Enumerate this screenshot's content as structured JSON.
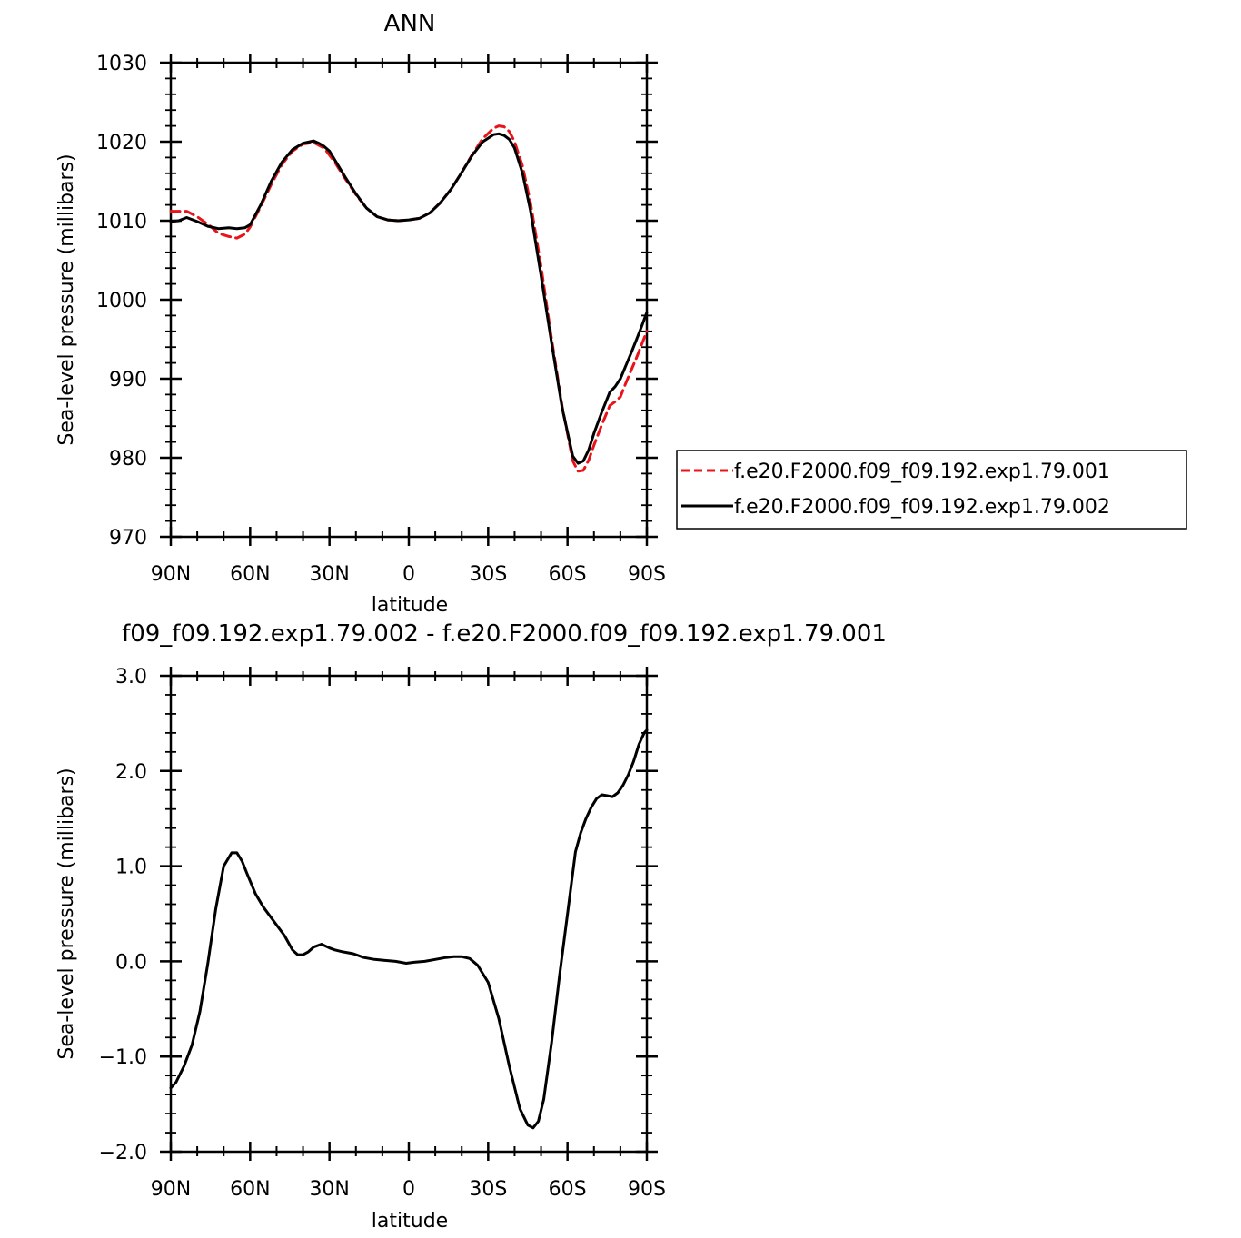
{
  "chart_data": [
    {
      "type": "line",
      "title": "ANN",
      "xlabel": "latitude",
      "ylabel": "Sea-level pressure (millibars)",
      "xlim": [
        90,
        -90
      ],
      "ylim": [
        970,
        1030
      ],
      "x_ticks": [
        {
          "value": 90,
          "label": "90N"
        },
        {
          "value": 60,
          "label": "60N"
        },
        {
          "value": 30,
          "label": "30N"
        },
        {
          "value": 0,
          "label": "0"
        },
        {
          "value": -30,
          "label": "30S"
        },
        {
          "value": -60,
          "label": "60S"
        },
        {
          "value": -90,
          "label": "90S"
        }
      ],
      "y_ticks": [
        {
          "value": 1030,
          "label": "1030"
        },
        {
          "value": 1020,
          "label": "1020"
        },
        {
          "value": 1010,
          "label": "1010"
        },
        {
          "value": 1000,
          "label": "1000"
        },
        {
          "value": 990,
          "label": "990"
        },
        {
          "value": 980,
          "label": "980"
        },
        {
          "value": 970,
          "label": "970"
        }
      ],
      "legend_position": "right",
      "series": [
        {
          "name": "f.e20.F2000.f09_f09.192.exp1.79.001",
          "color": "#e8141a",
          "dash": "dashed",
          "x": [
            90,
            84,
            80,
            75,
            72,
            68,
            65,
            62,
            60,
            56,
            52,
            48,
            44,
            40,
            36,
            32,
            28,
            24,
            20,
            16,
            12,
            8,
            4,
            0,
            -4,
            -8,
            -12,
            -16,
            -20,
            -24,
            -28,
            -32,
            -34,
            -36,
            -38,
            -40,
            -43,
            -46,
            -50,
            -54,
            -58,
            -62,
            -64,
            -66,
            -68,
            -70,
            -73,
            -76,
            -78,
            -80,
            -82,
            -84,
            -86,
            -88,
            -90
          ],
          "values": [
            1011.2,
            1011.2,
            1010.5,
            1009.3,
            1008.4,
            1008.0,
            1007.8,
            1008.3,
            1009.2,
            1011.8,
            1014.6,
            1017.1,
            1018.8,
            1019.7,
            1019.9,
            1019.2,
            1017.4,
            1015.3,
            1013.3,
            1011.6,
            1010.5,
            1010.1,
            1010.0,
            1010.1,
            1010.3,
            1011.0,
            1012.3,
            1014.0,
            1016.1,
            1018.4,
            1020.4,
            1021.7,
            1022.0,
            1021.9,
            1021.3,
            1020.0,
            1016.9,
            1012.3,
            1004.2,
            995.0,
            986.5,
            979.6,
            978.3,
            978.4,
            979.7,
            981.6,
            984.2,
            986.6,
            987.1,
            987.7,
            989.4,
            991.0,
            992.6,
            994.3,
            996.0
          ]
        },
        {
          "name": "f.e20.F2000.f09_f09.192.exp1.79.002",
          "color": "#000000",
          "dash": "solid",
          "x": [
            90,
            87,
            84,
            80,
            76,
            72,
            68,
            65,
            62,
            60,
            56,
            52,
            48,
            44,
            40,
            36,
            34,
            32,
            30,
            28,
            24,
            20,
            16,
            12,
            8,
            4,
            0,
            -4,
            -8,
            -12,
            -16,
            -20,
            -24,
            -28,
            -32,
            -34,
            -36,
            -38,
            -40,
            -43,
            -46,
            -50,
            -54,
            -58,
            -62,
            -64,
            -66,
            -68,
            -70,
            -73,
            -76,
            -78,
            -80,
            -82,
            -84,
            -86,
            -88,
            -90
          ],
          "values": [
            1009.9,
            1010.0,
            1010.4,
            1009.9,
            1009.3,
            1009.0,
            1009.1,
            1009.0,
            1009.1,
            1009.5,
            1012.0,
            1015.0,
            1017.4,
            1019.0,
            1019.8,
            1020.1,
            1019.8,
            1019.4,
            1018.8,
            1017.7,
            1015.5,
            1013.4,
            1011.6,
            1010.5,
            1010.1,
            1010.0,
            1010.1,
            1010.3,
            1011.0,
            1012.3,
            1014.0,
            1016.1,
            1018.3,
            1020.0,
            1020.9,
            1021.0,
            1020.8,
            1020.3,
            1019.2,
            1016.0,
            1011.3,
            1003.0,
            994.5,
            986.3,
            980.2,
            979.3,
            979.6,
            981.0,
            983.1,
            985.8,
            988.3,
            989.0,
            990.0,
            991.6,
            993.2,
            994.9,
            996.6,
            998.4
          ]
        }
      ]
    },
    {
      "type": "line",
      "title": "f09_f09.192.exp1.79.002 - f.e20.F2000.f09_f09.192.exp1.79.001",
      "xlabel": "latitude",
      "ylabel": "Sea-level pressure (millibars)",
      "xlim": [
        90,
        -90
      ],
      "ylim": [
        -2.0,
        3.0
      ],
      "x_ticks": [
        {
          "value": 90,
          "label": "90N"
        },
        {
          "value": 60,
          "label": "60N"
        },
        {
          "value": 30,
          "label": "30N"
        },
        {
          "value": 0,
          "label": "0"
        },
        {
          "value": -30,
          "label": "30S"
        },
        {
          "value": -60,
          "label": "60S"
        },
        {
          "value": -90,
          "label": "90S"
        }
      ],
      "y_ticks": [
        {
          "value": 3.0,
          "label": "3.0"
        },
        {
          "value": 2.0,
          "label": "2.0"
        },
        {
          "value": 1.0,
          "label": "1.0"
        },
        {
          "value": 0.0,
          "label": "0.0"
        },
        {
          "value": -1.0,
          "label": "−1.0"
        },
        {
          "value": -2.0,
          "label": "−2.0"
        }
      ],
      "series": [
        {
          "color": "#000000",
          "dash": "solid",
          "x": [
            90,
            88,
            85,
            82,
            79,
            76,
            73,
            70,
            67,
            65,
            63,
            61,
            58,
            55,
            51,
            47,
            44,
            42,
            40,
            38,
            36,
            33,
            30,
            28,
            25,
            21,
            17,
            13,
            9,
            5,
            1,
            -2,
            -6,
            -10,
            -14,
            -17,
            -20,
            -23,
            -26,
            -30,
            -34,
            -38,
            -42,
            -45,
            -47,
            -49,
            -51,
            -54,
            -57,
            -60,
            -63,
            -65,
            -67,
            -69,
            -71,
            -73,
            -75,
            -77,
            -79,
            -81,
            -83,
            -85,
            -87,
            -89,
            -90
          ],
          "values": [
            -1.33,
            -1.27,
            -1.1,
            -0.88,
            -0.53,
            -0.02,
            0.55,
            1.0,
            1.14,
            1.14,
            1.05,
            0.91,
            0.71,
            0.57,
            0.42,
            0.27,
            0.12,
            0.07,
            0.07,
            0.1,
            0.15,
            0.18,
            0.14,
            0.12,
            0.1,
            0.08,
            0.04,
            0.02,
            0.01,
            0.0,
            -0.02,
            -0.01,
            0.0,
            0.02,
            0.04,
            0.05,
            0.05,
            0.03,
            -0.04,
            -0.22,
            -0.6,
            -1.1,
            -1.55,
            -1.72,
            -1.75,
            -1.68,
            -1.45,
            -0.85,
            -0.15,
            0.5,
            1.15,
            1.35,
            1.5,
            1.62,
            1.71,
            1.75,
            1.74,
            1.73,
            1.77,
            1.85,
            1.96,
            2.1,
            2.28,
            2.4,
            2.43
          ]
        }
      ]
    }
  ]
}
